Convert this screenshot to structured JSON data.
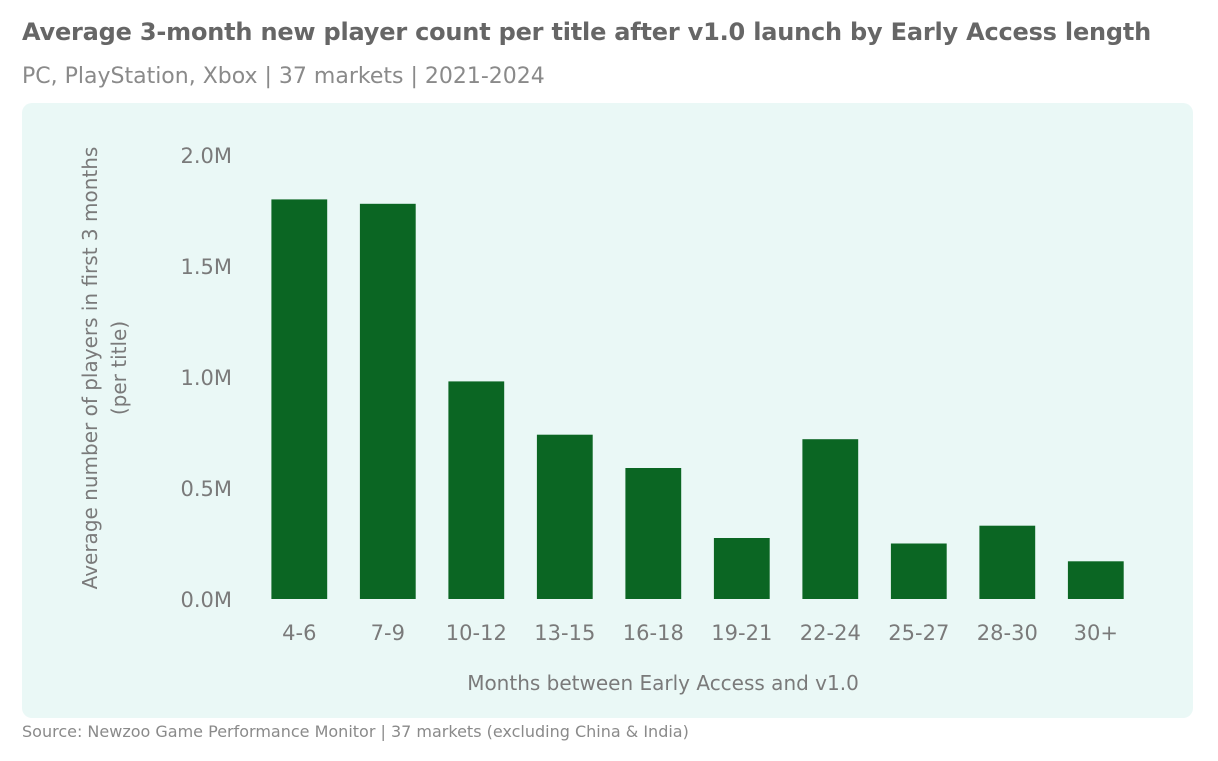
{
  "chart_data": {
    "type": "bar",
    "title": "Average 3-month new player count per title after v1.0 launch by Early Access length",
    "subtitle": "PC, PlayStation, Xbox  | 37 markets | 2021-2024",
    "xlabel": "Months between Early Access and v1.0",
    "ylabel_line1": "Average number of players in first 3 months",
    "ylabel_line2": "(per title)",
    "categories": [
      "4-6",
      "7-9",
      "10-12",
      "13-15",
      "16-18",
      "19-21",
      "22-24",
      "25-27",
      "28-30",
      "30+"
    ],
    "values": [
      1800000,
      1780000,
      980000,
      740000,
      590000,
      275000,
      720000,
      250000,
      330000,
      170000
    ],
    "ylim": [
      0,
      2000000
    ],
    "yticks": [
      {
        "value": 0,
        "label": "0.0M"
      },
      {
        "value": 500000,
        "label": "0.5M"
      },
      {
        "value": 1000000,
        "label": "1.0M"
      },
      {
        "value": 1500000,
        "label": "1.5M"
      },
      {
        "value": 2000000,
        "label": "2.0M"
      }
    ],
    "grid": false,
    "bar_color": "#0b6623",
    "background_color": "#eaf8f6"
  },
  "source": "Source: Newzoo Game Performance Monitor | 37 markets (excluding China & India)"
}
